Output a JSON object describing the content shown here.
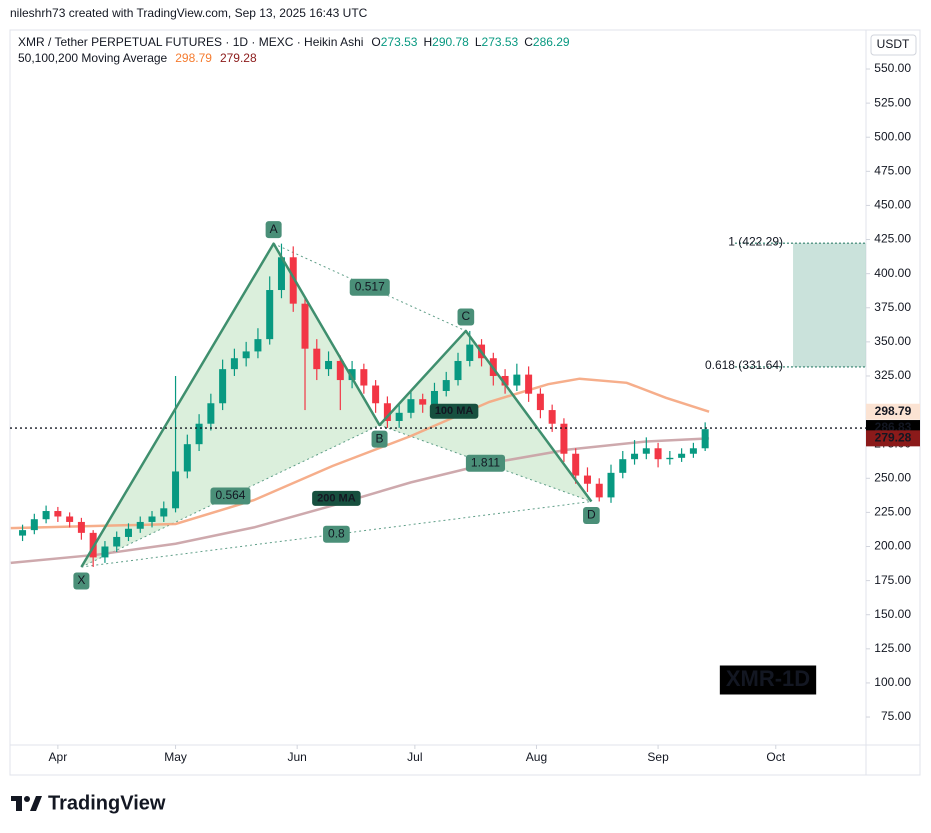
{
  "chart_data": {
    "type": "candlestick",
    "credit": "nileshrh73 created with TradingView.com, Sep 13, 2025 16:43 UTC",
    "title": "XMR / Tether PERPETUAL FUTURES · 1D · MEXC · Heikin Ashi",
    "ohlc": [
      {
        "label": "O",
        "value": 273.53
      },
      {
        "label": "H",
        "value": 290.78
      },
      {
        "label": "L",
        "value": 273.53
      },
      {
        "label": "C",
        "value": 286.29
      }
    ],
    "ma_legend": {
      "label": "50,100,200 Moving Average",
      "values": [
        298.79,
        279.28
      ],
      "colors": [
        "#f57c30",
        "#8b1a1a"
      ]
    },
    "currency": "USDT",
    "watermark": "XMR-1D",
    "brand": "TradingView",
    "xlim": [
      -12.2,
      206
    ],
    "xticks": [
      {
        "value": 0,
        "label": "Apr"
      },
      {
        "value": 30,
        "label": "May"
      },
      {
        "value": 61,
        "label": "Jun"
      },
      {
        "value": 91,
        "label": "Jul"
      },
      {
        "value": 122,
        "label": "Aug"
      },
      {
        "value": 153,
        "label": "Sep"
      },
      {
        "value": 183,
        "label": "Oct"
      }
    ],
    "ylim": [
      54.5,
      578.6
    ],
    "yticks": [
      {
        "value": 75,
        "label": "75.00"
      },
      {
        "value": 100,
        "label": "100.00"
      },
      {
        "value": 125,
        "label": "125.00"
      },
      {
        "value": 150,
        "label": "150.00"
      },
      {
        "value": 175,
        "label": "175.00"
      },
      {
        "value": 200,
        "label": "200.00"
      },
      {
        "value": 225,
        "label": "225.00"
      },
      {
        "value": 250,
        "label": "250.00"
      },
      {
        "value": 275,
        "label": "275.00"
      },
      {
        "value": 300,
        "label": "300.00"
      },
      {
        "value": 325,
        "label": "325.00"
      },
      {
        "value": 350,
        "label": "350.00"
      },
      {
        "value": 375,
        "label": "375.00"
      },
      {
        "value": 400,
        "label": "400.00"
      },
      {
        "value": 425,
        "label": "425.00"
      },
      {
        "value": 450,
        "label": "450.00"
      },
      {
        "value": 475,
        "label": "475.00"
      },
      {
        "value": 500,
        "label": "500.00"
      },
      {
        "value": 525,
        "label": "525.00"
      },
      {
        "value": 550,
        "label": "550.00"
      }
    ],
    "grid": false,
    "candles": {
      "up_color": "#089981",
      "down_color": "#f23645",
      "x": [
        -9,
        -6,
        -3,
        0,
        3,
        6,
        9,
        12,
        15,
        18,
        21,
        24,
        27,
        30,
        33,
        36,
        39,
        42,
        45,
        48,
        51,
        54,
        57,
        60,
        63,
        66,
        69,
        72,
        75,
        78,
        81,
        84,
        87,
        90,
        93,
        96,
        99,
        102,
        105,
        108,
        111,
        114,
        117,
        120,
        123,
        126,
        129,
        132,
        135,
        138,
        141,
        144,
        147,
        150,
        153,
        156,
        159,
        162,
        165
      ],
      "open": [
        208,
        212,
        220,
        226,
        222,
        218,
        210,
        192,
        200,
        207,
        213,
        218,
        222,
        228,
        255,
        275,
        290,
        305,
        330,
        338,
        343,
        352,
        388,
        412,
        378,
        345,
        330,
        336,
        322,
        330,
        318,
        305,
        292,
        298,
        308,
        304,
        314,
        322,
        336,
        348,
        338,
        325,
        318,
        326,
        312,
        300,
        290,
        268,
        252,
        246,
        236,
        254,
        264,
        268,
        272,
        264,
        265,
        268,
        272
      ],
      "high": [
        216,
        224,
        230,
        229,
        225,
        221,
        212,
        204,
        211,
        217,
        222,
        226,
        233,
        325,
        282,
        297,
        312,
        337,
        345,
        350,
        360,
        398,
        422,
        420,
        382,
        352,
        343,
        340,
        336,
        334,
        322,
        310,
        304,
        314,
        312,
        320,
        328,
        342,
        358,
        352,
        342,
        330,
        334,
        332,
        316,
        304,
        294,
        272,
        258,
        250,
        260,
        270,
        278,
        280,
        276,
        270,
        272,
        276,
        291
      ],
      "low": [
        204,
        209,
        217,
        218,
        214,
        205,
        185,
        188,
        196,
        204,
        210,
        214,
        218,
        225,
        250,
        270,
        285,
        300,
        325,
        332,
        338,
        348,
        382,
        372,
        300,
        322,
        325,
        300,
        316,
        312,
        298,
        287,
        287,
        294,
        298,
        300,
        310,
        318,
        332,
        332,
        318,
        312,
        314,
        306,
        294,
        284,
        262,
        246,
        240,
        233,
        232,
        250,
        260,
        264,
        258,
        260,
        262,
        265,
        270
      ],
      "close": [
        212,
        220,
        226,
        222,
        218,
        210,
        192,
        200,
        207,
        213,
        218,
        222,
        228,
        255,
        275,
        290,
        305,
        330,
        338,
        343,
        352,
        388,
        412,
        378,
        345,
        330,
        336,
        322,
        330,
        318,
        305,
        292,
        298,
        308,
        304,
        314,
        322,
        336,
        348,
        338,
        325,
        318,
        326,
        312,
        300,
        290,
        268,
        252,
        246,
        236,
        254,
        264,
        268,
        272,
        264,
        265,
        268,
        272,
        286
      ]
    },
    "series": [
      {
        "name": "100 MA",
        "color": "#f5a57e",
        "x": [
          -12,
          30,
          50,
          70,
          90,
          110,
          125,
          133,
          145,
          155,
          166
        ],
        "values": [
          213.5,
          216.5,
          234,
          259,
          281,
          306,
          319,
          323,
          320,
          309,
          298.79
        ]
      },
      {
        "name": "200 MA",
        "color": "#c9a0a4",
        "x": [
          -12,
          10,
          30,
          50,
          70,
          90,
          110,
          130,
          150,
          166
        ],
        "values": [
          188,
          194,
          202,
          214,
          230,
          247,
          261,
          271,
          277,
          279.28
        ]
      }
    ],
    "pattern": {
      "color": "#3f8f6e",
      "points": [
        {
          "label": "X",
          "x": 6,
          "value": 185
        },
        {
          "label": "A",
          "x": 55,
          "value": 422
        },
        {
          "label": "B",
          "x": 82,
          "value": 289
        },
        {
          "label": "C",
          "x": 104,
          "value": 358
        },
        {
          "label": "D",
          "x": 136,
          "value": 233
        }
      ],
      "ratios": [
        0.517,
        0.564,
        1.811,
        0.8
      ]
    },
    "fib": [
      {
        "label": "1 (422.29)",
        "value": 422.29
      },
      {
        "label": "0.618 (331.64)",
        "value": 331.64
      }
    ],
    "price_badges": [
      {
        "value": 298.79,
        "bg": "#fbe3d3",
        "fg": "#f57c30"
      },
      {
        "value": 286.83,
        "bg": "#000000",
        "fg": "#ffffff"
      },
      {
        "value": 279.28,
        "bg": "#8b1a1a",
        "fg": "#ffffff"
      }
    ]
  }
}
